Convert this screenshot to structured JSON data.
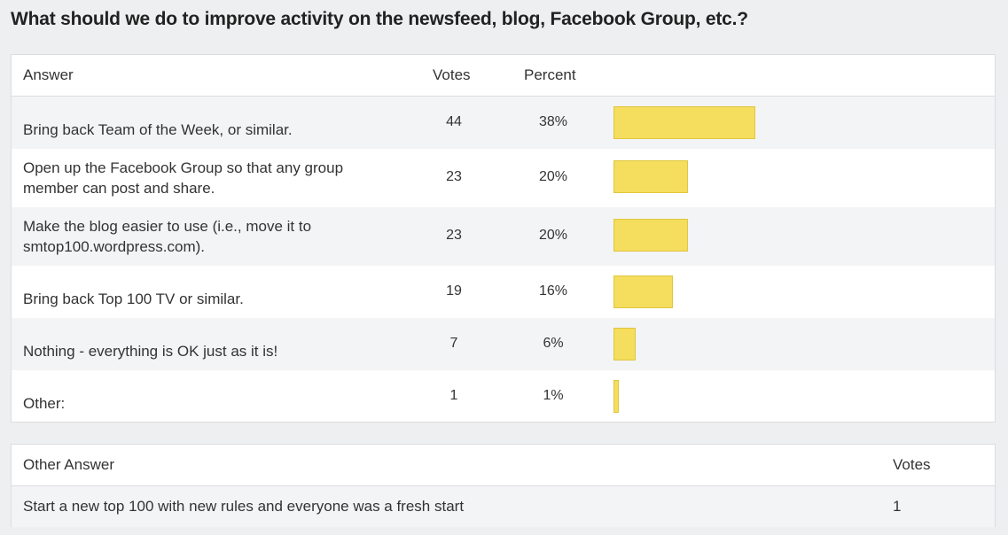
{
  "question": "What should we do to improve activity on the newsfeed, blog, Facebook Group, etc.?",
  "results": {
    "headers": {
      "answer": "Answer",
      "votes": "Votes",
      "percent": "Percent"
    },
    "rows": [
      {
        "answer": "Bring back Team of the Week, or similar.",
        "votes": "44",
        "percent": "38%",
        "share": 0.38
      },
      {
        "answer": "Open up the Facebook Group so that any group member can post and share.",
        "votes": "23",
        "percent": "20%",
        "share": 0.2
      },
      {
        "answer": "Make the blog easier to use (i.e., move it to smtop100.wordpress.com).",
        "votes": "23",
        "percent": "20%",
        "share": 0.2
      },
      {
        "answer": "Bring back Top 100 TV or similar.",
        "votes": "19",
        "percent": "16%",
        "share": 0.16
      },
      {
        "answer": "Nothing - everything is OK just as it is!",
        "votes": "7",
        "percent": "6%",
        "share": 0.06
      },
      {
        "answer": "Other:",
        "votes": "1",
        "percent": "1%",
        "share": 0.01
      }
    ]
  },
  "other_answers": {
    "headers": {
      "answer": "Other Answer",
      "votes": "Votes"
    },
    "rows": [
      {
        "answer": "Start a new top 100 with new rules and everyone was a fresh start",
        "votes": "1"
      }
    ]
  },
  "colors": {
    "bar": "#f5dd5e",
    "bar_border": "#e0c63e"
  }
}
